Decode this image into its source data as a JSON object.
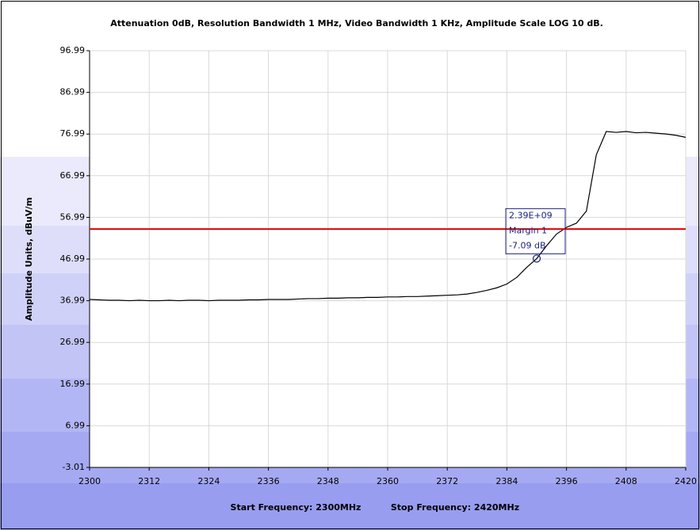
{
  "chart_data": {
    "type": "line",
    "title": "Attenuation 0dB, Resolution Bandwidth 1 MHz, Video Bandwidth 1 KHz, Amplitude Scale LOG 10 dB.",
    "y_label": "Amplitude Units, dBuV/m",
    "x_labels": [
      "Start Frequency: 2300MHz",
      "Stop Frequency: 2420MHz"
    ],
    "xlim": [
      2300,
      2420
    ],
    "xticks": [
      2300,
      2312,
      2324,
      2336,
      2348,
      2360,
      2372,
      2384,
      2396,
      2408,
      2420
    ],
    "ylim": [
      -3.01,
      96.99
    ],
    "yticks": [
      -3.01,
      6.99,
      16.99,
      26.99,
      36.99,
      46.99,
      56.99,
      66.99,
      76.99,
      86.99,
      96.99
    ],
    "grid": true,
    "series": [
      {
        "color": "#000000",
        "x": [
          2300,
          2302,
          2304,
          2306,
          2308,
          2310,
          2312,
          2314,
          2316,
          2318,
          2320,
          2322,
          2324,
          2326,
          2328,
          2330,
          2332,
          2334,
          2336,
          2338,
          2340,
          2342,
          2344,
          2346,
          2348,
          2350,
          2352,
          2354,
          2356,
          2358,
          2360,
          2362,
          2364,
          2366,
          2368,
          2370,
          2372,
          2374,
          2376,
          2378,
          2380,
          2382,
          2384,
          2386,
          2388,
          2390,
          2392,
          2394,
          2396,
          2398,
          2400,
          2402,
          2404,
          2406,
          2408,
          2410,
          2412,
          2414,
          2416,
          2418,
          2420
        ],
        "values": [
          37.3,
          37.2,
          37.1,
          37.1,
          37.0,
          37.1,
          37.0,
          37.0,
          37.1,
          37.0,
          37.1,
          37.1,
          37.0,
          37.1,
          37.1,
          37.1,
          37.2,
          37.2,
          37.3,
          37.3,
          37.3,
          37.4,
          37.5,
          37.5,
          37.6,
          37.6,
          37.7,
          37.7,
          37.8,
          37.8,
          37.9,
          37.9,
          38.0,
          38.0,
          38.1,
          38.2,
          38.3,
          38.4,
          38.6,
          39.0,
          39.5,
          40.1,
          41.0,
          42.6,
          45.0,
          47.1,
          50.2,
          53.0,
          54.6,
          55.6,
          58.5,
          72.0,
          77.6,
          77.4,
          77.6,
          77.3,
          77.4,
          77.2,
          77.0,
          76.7,
          76.2
        ]
      }
    ],
    "limit": {
      "value": 54.2,
      "color": "#e00000"
    },
    "marker": {
      "x": 2390,
      "value": 47.11,
      "color": "#1a237e",
      "labels": [
        "2.39E+09",
        "Margin 1",
        "-7.09 dB"
      ]
    }
  }
}
